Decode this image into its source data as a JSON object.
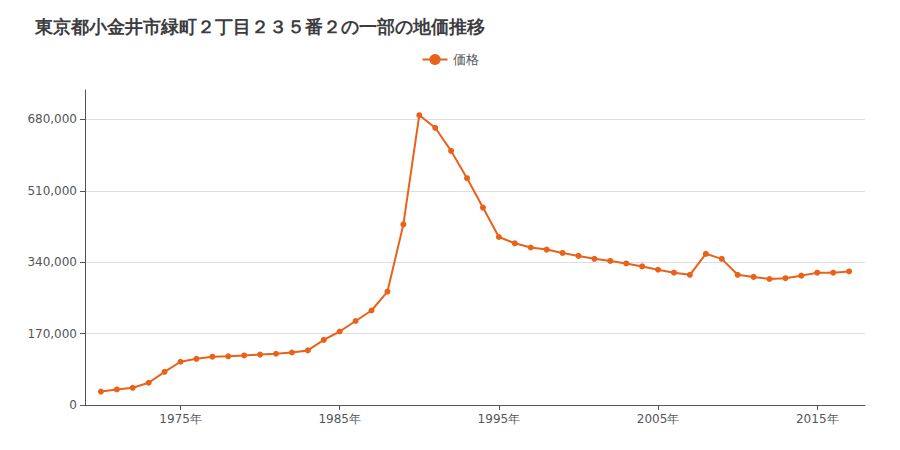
{
  "chart_data": {
    "type": "line",
    "title": "東京都小金井市緑町２丁目２３５番２の一部の地価推移",
    "x": [
      1970,
      1971,
      1972,
      1973,
      1974,
      1975,
      1976,
      1977,
      1978,
      1979,
      1980,
      1981,
      1982,
      1983,
      1984,
      1985,
      1986,
      1987,
      1988,
      1989,
      1990,
      1991,
      1992,
      1993,
      1994,
      1995,
      1996,
      1997,
      1998,
      1999,
      2000,
      2001,
      2002,
      2003,
      2004,
      2005,
      2006,
      2007,
      2008,
      2009,
      2010,
      2011,
      2012,
      2013,
      2014,
      2015,
      2016,
      2017
    ],
    "series": [
      {
        "name": "価格",
        "color": "#e8621a",
        "marker": "circle",
        "values": [
          32000,
          37000,
          41000,
          53000,
          79000,
          103000,
          110000,
          115000,
          116000,
          118000,
          120000,
          122000,
          125000,
          130000,
          155000,
          175000,
          200000,
          225000,
          270000,
          430000,
          690000,
          660000,
          605000,
          540000,
          470000,
          400000,
          385000,
          375000,
          370000,
          362000,
          355000,
          348000,
          343000,
          337000,
          330000,
          322000,
          315000,
          310000,
          360000,
          348000,
          310000,
          305000,
          300000,
          302000,
          308000,
          315000,
          315000,
          318000
        ]
      }
    ],
    "xlim": [
      1969,
      2018
    ],
    "xticks": [
      {
        "value": 1975,
        "label": "1975年"
      },
      {
        "value": 1985,
        "label": "1985年"
      },
      {
        "value": 1995,
        "label": "1995年"
      },
      {
        "value": 2005,
        "label": "2005年"
      },
      {
        "value": 2015,
        "label": "2015年"
      }
    ],
    "ylim": [
      0,
      750000
    ],
    "yticks": [
      0,
      {
        "value": 170000,
        "label": "170,000"
      },
      {
        "value": 340000,
        "label": "340,000"
      },
      {
        "value": 510000,
        "label": "510,000"
      },
      {
        "value": 680000,
        "label": "680,000"
      }
    ],
    "grid": "y",
    "legend": "top"
  }
}
